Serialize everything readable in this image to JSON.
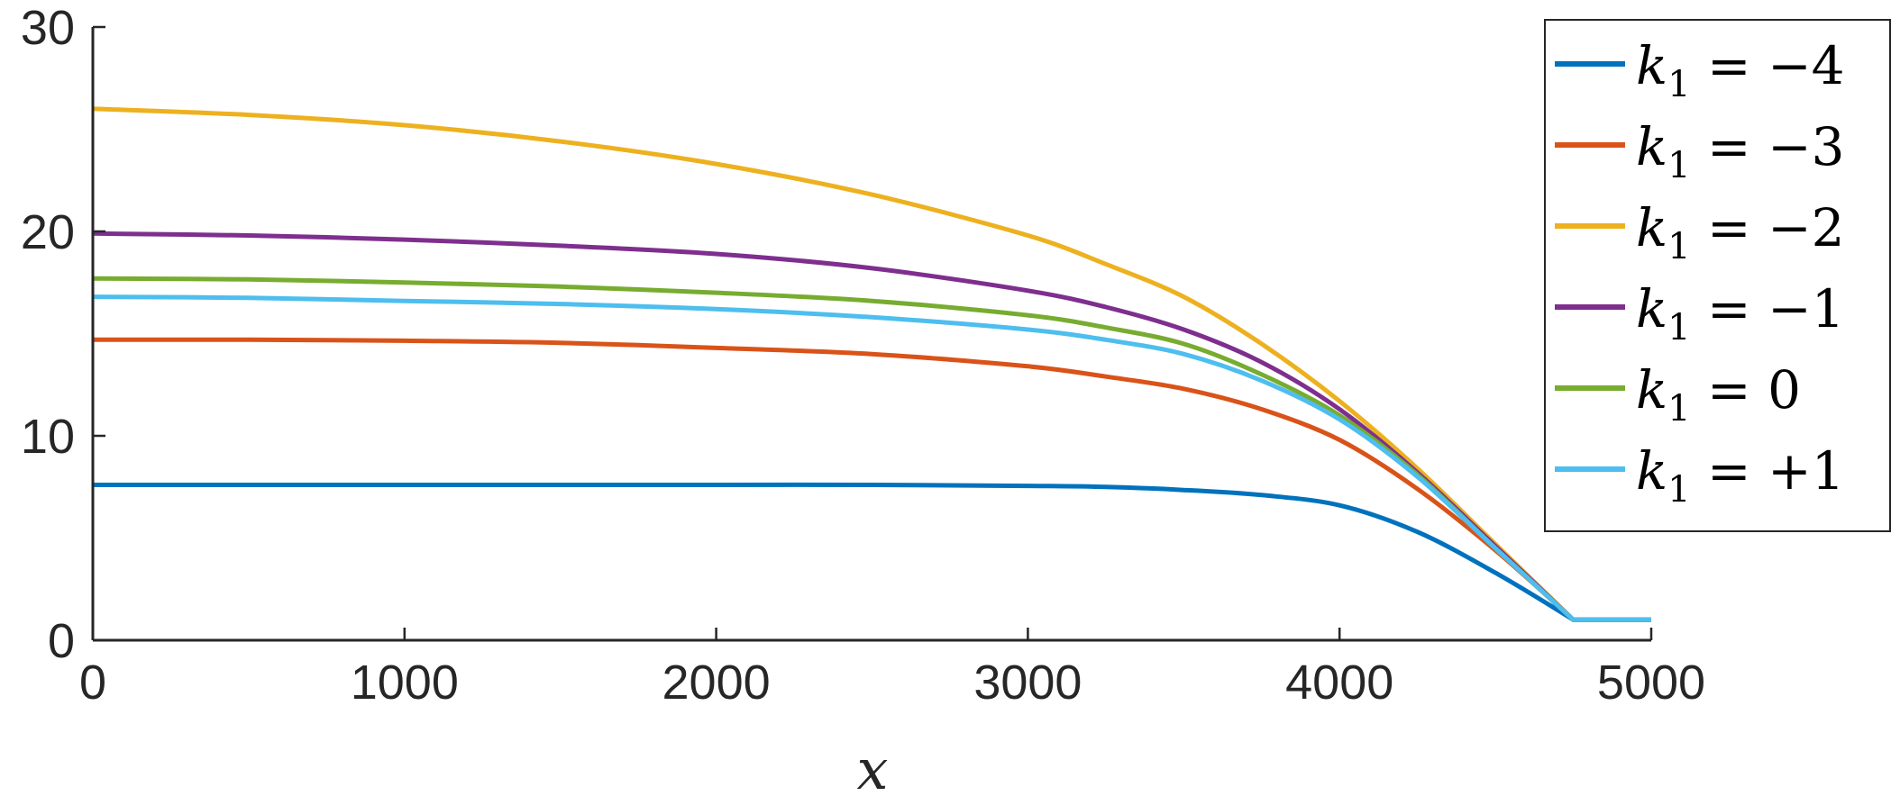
{
  "chart_data": {
    "type": "line",
    "title": "",
    "xlabel": "x",
    "ylabel": "",
    "xlim": [
      0,
      5000
    ],
    "ylim": [
      0,
      30
    ],
    "xticks": [
      "0",
      "1000",
      "2000",
      "3000",
      "4000",
      "5000"
    ],
    "yticks": [
      "0",
      "10",
      "20",
      "30"
    ],
    "grid": false,
    "legend_position": "top-right",
    "x": [
      0,
      500,
      1000,
      1500,
      2000,
      2500,
      3000,
      3250,
      3500,
      3750,
      4000,
      4250,
      4500,
      4750,
      5000
    ],
    "series": [
      {
        "name": "k1 = -4",
        "label_sub": "1",
        "label_rest": " = −4",
        "color": "#0072BD",
        "values": [
          7.6,
          7.6,
          7.6,
          7.6,
          7.6,
          7.6,
          7.55,
          7.5,
          7.35,
          7.1,
          6.6,
          5.3,
          3.3,
          1.0,
          1.0
        ]
      },
      {
        "name": "k1 = -3",
        "label_sub": "1",
        "label_rest": " = −3",
        "color": "#D95319",
        "values": [
          14.7,
          14.7,
          14.65,
          14.55,
          14.3,
          14.0,
          13.4,
          12.9,
          12.3,
          11.3,
          9.8,
          7.4,
          4.4,
          1.0,
          1.0
        ]
      },
      {
        "name": "k1 = -2",
        "label_sub": "1",
        "label_rest": " = −2",
        "color": "#EDB120",
        "values": [
          26.0,
          25.7,
          25.2,
          24.4,
          23.3,
          21.8,
          19.8,
          18.4,
          16.8,
          14.5,
          11.7,
          8.4,
          4.7,
          1.0,
          1.0
        ]
      },
      {
        "name": "k1 = -1",
        "label_sub": "1",
        "label_rest": " = −1",
        "color": "#7E2F8E",
        "values": [
          19.9,
          19.8,
          19.6,
          19.3,
          18.9,
          18.2,
          17.1,
          16.3,
          15.2,
          13.6,
          11.3,
          8.2,
          4.6,
          1.0,
          1.0
        ]
      },
      {
        "name": "k1 = 0",
        "label_sub": "1",
        "label_rest": " = 0",
        "color": "#77AC30",
        "values": [
          17.7,
          17.65,
          17.5,
          17.3,
          17.0,
          16.6,
          15.9,
          15.3,
          14.5,
          13.0,
          11.0,
          8.1,
          4.5,
          1.0,
          1.0
        ]
      },
      {
        "name": "k1 = +1",
        "label_sub": "1",
        "label_rest": " = +1",
        "color": "#4DBEEE",
        "values": [
          16.8,
          16.75,
          16.6,
          16.45,
          16.2,
          15.8,
          15.2,
          14.7,
          14.0,
          12.7,
          10.8,
          8.0,
          4.5,
          1.0,
          1.0
        ]
      }
    ]
  }
}
